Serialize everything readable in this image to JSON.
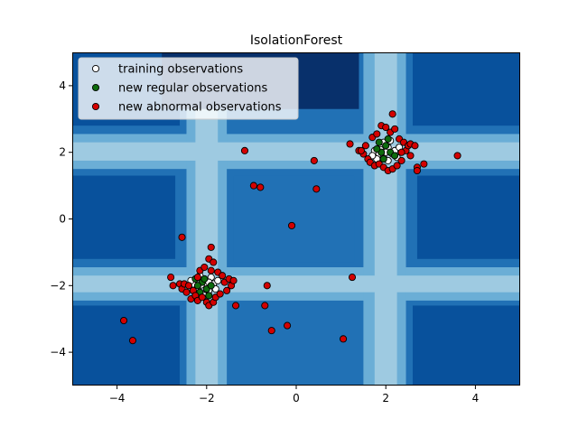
{
  "chart_data": {
    "type": "scatter",
    "title": "IsolationForest",
    "xlabel": "",
    "ylabel": "",
    "xlim": [
      -5,
      5
    ],
    "ylim": [
      -5,
      5
    ],
    "xticks": [
      -4,
      -2,
      0,
      2,
      4
    ],
    "yticks": [
      -4,
      -2,
      0,
      2,
      4
    ],
    "x_tick_labels": [
      "−4",
      "−2",
      "0",
      "2",
      "4"
    ],
    "y_tick_labels": [
      "−4",
      "−2",
      "0",
      "2",
      "4"
    ],
    "grid": false,
    "legend_position": "top-left",
    "background": "filled decision-function contour (Blues colormap), darker = more anomalous",
    "colors": {
      "training": "#ffffff",
      "regular": "#0d6b0d",
      "abnormal": "#d40000",
      "edge": "#000000",
      "contour_levels": [
        "#08306b",
        "#08519c",
        "#2171b5",
        "#4292c6",
        "#6baed6",
        "#9ecae1",
        "#c6dbef"
      ]
    },
    "series": [
      {
        "name": "training observations",
        "color": "#ffffff",
        "points": [
          [
            -2.3,
            -1.95
          ],
          [
            -2.2,
            -2.05
          ],
          [
            -2.05,
            -1.85
          ],
          [
            -1.95,
            -2.15
          ],
          [
            -1.85,
            -1.95
          ],
          [
            -2.1,
            -2.25
          ],
          [
            -1.9,
            -1.75
          ],
          [
            -2.15,
            -1.7
          ],
          [
            -2.0,
            -2.0
          ],
          [
            -1.8,
            -2.1
          ],
          [
            -2.25,
            -2.15
          ],
          [
            -1.95,
            -1.9
          ],
          [
            -2.05,
            -2.3
          ],
          [
            -2.35,
            -1.85
          ],
          [
            -1.75,
            -1.85
          ],
          [
            -2.12,
            -1.98
          ],
          [
            1.75,
            2.05
          ],
          [
            1.85,
            1.95
          ],
          [
            2.05,
            2.15
          ],
          [
            1.95,
            1.85
          ],
          [
            2.15,
            1.95
          ],
          [
            1.9,
            2.25
          ],
          [
            2.1,
            2.35
          ],
          [
            2.2,
            2.05
          ],
          [
            2.0,
            2.0
          ],
          [
            1.8,
            1.8
          ],
          [
            2.25,
            1.85
          ],
          [
            1.95,
            2.3
          ],
          [
            1.7,
            1.9
          ],
          [
            2.3,
            2.15
          ],
          [
            2.05,
            1.75
          ],
          [
            1.88,
            2.08
          ]
        ]
      },
      {
        "name": "new regular observations",
        "color": "#0d6b0d",
        "points": [
          [
            -2.1,
            -1.9
          ],
          [
            -2.0,
            -2.1
          ],
          [
            -1.9,
            -2.0
          ],
          [
            -2.2,
            -2.0
          ],
          [
            -2.05,
            -1.8
          ],
          [
            -1.95,
            -2.3
          ],
          [
            -2.15,
            -2.2
          ],
          [
            -2.25,
            -1.8
          ],
          [
            1.9,
            2.0
          ],
          [
            2.0,
            2.2
          ],
          [
            2.1,
            2.0
          ],
          [
            1.8,
            2.1
          ],
          [
            1.95,
            1.8
          ],
          [
            2.05,
            2.4
          ],
          [
            1.85,
            2.3
          ],
          [
            2.2,
            1.9
          ]
        ]
      },
      {
        "name": "new abnormal observations",
        "color": "#d40000",
        "points": [
          [
            -2.8,
            -1.75
          ],
          [
            -2.75,
            -2.0
          ],
          [
            -2.6,
            -1.95
          ],
          [
            -2.55,
            -2.1
          ],
          [
            -2.5,
            -1.95
          ],
          [
            -2.45,
            -2.2
          ],
          [
            -2.4,
            -2.0
          ],
          [
            -2.35,
            -2.4
          ],
          [
            -2.3,
            -2.15
          ],
          [
            -2.25,
            -2.3
          ],
          [
            -2.2,
            -1.75
          ],
          [
            -2.2,
            -2.45
          ],
          [
            -2.15,
            -1.55
          ],
          [
            -2.1,
            -2.35
          ],
          [
            -2.05,
            -1.45
          ],
          [
            -2.0,
            -2.5
          ],
          [
            -1.95,
            -1.2
          ],
          [
            -1.95,
            -2.6
          ],
          [
            -1.9,
            -1.55
          ],
          [
            -1.85,
            -2.5
          ],
          [
            -1.85,
            -1.3
          ],
          [
            -1.8,
            -2.35
          ],
          [
            -1.75,
            -1.6
          ],
          [
            -1.7,
            -2.25
          ],
          [
            -1.65,
            -1.7
          ],
          [
            -1.6,
            -1.9
          ],
          [
            -1.55,
            -2.15
          ],
          [
            -1.5,
            -1.8
          ],
          [
            -1.45,
            -2.0
          ],
          [
            -1.4,
            -1.85
          ],
          [
            -1.35,
            -2.6
          ],
          [
            -1.9,
            -0.85
          ],
          [
            -2.55,
            -0.55
          ],
          [
            -1.15,
            2.05
          ],
          [
            -0.95,
            1.0
          ],
          [
            -0.8,
            0.95
          ],
          [
            -0.1,
            -0.2
          ],
          [
            0.4,
            1.75
          ],
          [
            0.45,
            0.9
          ],
          [
            -0.65,
            -2.0
          ],
          [
            -0.7,
            -2.6
          ],
          [
            -0.55,
            -3.35
          ],
          [
            -0.2,
            -3.2
          ],
          [
            1.05,
            -3.6
          ],
          [
            1.25,
            -1.75
          ],
          [
            1.2,
            2.25
          ],
          [
            -3.85,
            -3.05
          ],
          [
            -3.65,
            -3.65
          ],
          [
            1.4,
            2.05
          ],
          [
            1.5,
            1.95
          ],
          [
            1.55,
            2.2
          ],
          [
            1.6,
            1.8
          ],
          [
            1.65,
            1.7
          ],
          [
            1.7,
            2.45
          ],
          [
            1.75,
            1.6
          ],
          [
            1.8,
            2.55
          ],
          [
            1.85,
            1.65
          ],
          [
            1.9,
            2.8
          ],
          [
            1.95,
            1.55
          ],
          [
            2.0,
            2.75
          ],
          [
            2.05,
            1.45
          ],
          [
            2.1,
            2.6
          ],
          [
            2.15,
            1.5
          ],
          [
            2.2,
            2.7
          ],
          [
            2.25,
            1.6
          ],
          [
            2.3,
            2.4
          ],
          [
            2.35,
            1.75
          ],
          [
            2.4,
            2.3
          ],
          [
            2.45,
            2.05
          ],
          [
            2.5,
            2.2
          ],
          [
            2.55,
            2.25
          ],
          [
            2.65,
            2.2
          ],
          [
            2.55,
            1.9
          ],
          [
            2.7,
            1.55
          ],
          [
            2.7,
            1.45
          ],
          [
            2.85,
            1.65
          ],
          [
            2.15,
            3.15
          ],
          [
            3.6,
            1.9
          ],
          [
            1.45,
            2.05
          ],
          [
            2.35,
            2.0
          ]
        ]
      }
    ]
  }
}
